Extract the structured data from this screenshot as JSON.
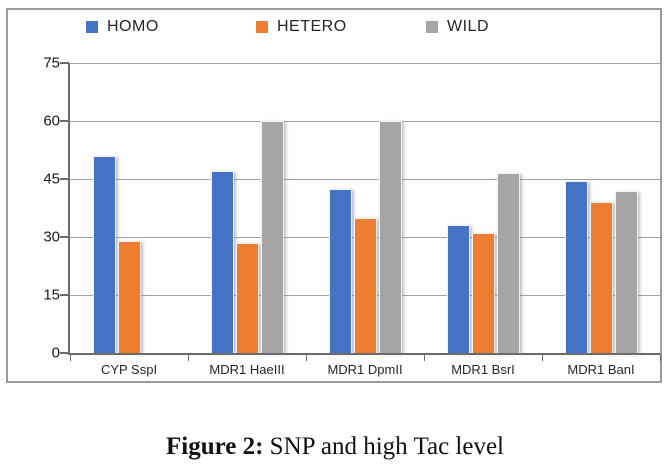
{
  "figure": {
    "caption_prefix": "Figure 2:",
    "caption_text": "SNP and high Tac level"
  },
  "chart_data": {
    "type": "bar",
    "title": "",
    "xlabel": "",
    "ylabel": "",
    "categories": [
      "CYP SspI",
      "MDR1 HaeIII",
      "MDR1 DpmII",
      "MDR1 BsrI",
      "MDR1 BanI"
    ],
    "series": [
      {
        "name": "HOMO",
        "color": "#4472C4",
        "values": [
          51,
          47,
          42.5,
          33,
          44.5
        ]
      },
      {
        "name": "HETERO",
        "color": "#ED7D31",
        "values": [
          29,
          28.5,
          35,
          31,
          39
        ]
      },
      {
        "name": "WILD",
        "color": "#A5A5A5",
        "values": [
          0,
          60,
          60,
          46.5,
          42
        ]
      }
    ],
    "ylim": [
      0,
      75
    ],
    "yticks": [
      0,
      15,
      30,
      45,
      60,
      75
    ],
    "grid": true,
    "legend_position": "top",
    "colors": {
      "axis": "#6b6b6b",
      "gridline": "#a3a3a3",
      "frame_border": "#9b9b9b",
      "text": "#262626"
    }
  }
}
